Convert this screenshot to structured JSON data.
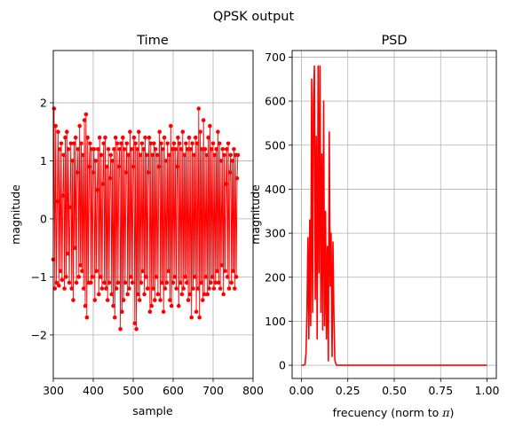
{
  "figure": {
    "title": "QPSK output"
  },
  "chart_data": [
    {
      "type": "line",
      "title": "Time",
      "xlabel": "sample",
      "ylabel": "magnitude",
      "xlim": [
        300,
        800
      ],
      "ylim": [
        -2.75,
        2.9
      ],
      "xticks": [
        300,
        400,
        500,
        600,
        700,
        800
      ],
      "yticks": [
        -2,
        -1,
        0,
        1,
        2
      ],
      "grid": true,
      "marker": "circle",
      "color": "#ff0000",
      "series": [
        {
          "note_samples": "oscillating signal, samples 300–800 (approximate envelope)",
          "x_start": 300,
          "x_step": 2,
          "values": [
            -0.7,
            1.9,
            -1.2,
            1.6,
            -1.1,
            0.3,
            1.5,
            -1.15,
            1.2,
            -0.9,
            1.3,
            -1.05,
            0.4,
            1.1,
            -1.2,
            1.4,
            -1.0,
            1.5,
            -0.6,
            1.2,
            -1.1,
            0.2,
            1.3,
            -1.2,
            1.0,
            -1.4,
            1.3,
            -0.5,
            1.4,
            -1.1,
            0.8,
            1.2,
            -1.0,
            1.6,
            -0.8,
            1.3,
            -0.9,
            1.1,
            -1.2,
            1.7,
            -1.5,
            1.8,
            -1.7,
            1.4,
            -1.1,
            0.9,
            1.3,
            -1.1,
            1.2,
            -1.0,
            0.8,
            1.2,
            -1.4,
            1.0,
            -0.9,
            0.5,
            1.2,
            -1.3,
            1.4,
            -1.0,
            1.1,
            -1.2,
            0.6,
            1.3,
            -1.1,
            1.4,
            -1.2,
            0.9,
            -1.4,
            1.2,
            -1.1,
            0.7,
            1.1,
            -1.3,
            1.0,
            -1.5,
            1.2,
            -1.7,
            1.4,
            -1.2,
            1.3,
            -1.1,
            0.9,
            1.2,
            -1.9,
            1.3,
            -1.6,
            1.4,
            -1.4,
            1.2,
            -1.1,
            0.8,
            1.3,
            -1.3,
            1.1,
            -1.2,
            1.5,
            -1.0,
            1.2,
            -1.1,
            0.9,
            1.4,
            -1.8,
            1.3,
            -1.9,
            1.2,
            -1.3,
            1.5,
            -1.4,
            1.1,
            -1.1,
            1.3,
            -0.9,
            1.2,
            -1.3,
            1.4,
            -1.0,
            1.1,
            -1.2,
            0.8,
            1.4,
            -1.6,
            1.3,
            -1.5,
            1.1,
            -1.2,
            1.3,
            -1.4,
            1.2,
            -1.0,
            1.1,
            -1.3,
            0.9,
            1.5,
            -1.4,
            1.3,
            -1.1,
            1.2,
            -1.6,
            1.4,
            -1.2,
            1.0,
            -1.1,
            1.3,
            -0.9,
            1.1,
            -1.4,
            1.6,
            -1.5,
            1.2,
            -1.1,
            1.3,
            -1.0,
            1.2,
            -1.2,
            0.9,
            1.4,
            -1.5,
            1.3,
            -1.1,
            1.2,
            -1.3,
            1.5,
            -1.2,
            1.1,
            -1.0,
            1.3,
            -1.1,
            1.2,
            -1.4,
            1.4,
            -1.3,
            1.2,
            -1.7,
            1.3,
            -1.2,
            1.1,
            -1.0,
            1.4,
            -1.6,
            1.3,
            -1.2,
            1.9,
            -1.7,
            1.5,
            -1.1,
            1.2,
            -1.4,
            1.7,
            -1.3,
            1.2,
            -1.0,
            1.1,
            -1.3,
            1.4,
            -1.2,
            1.6,
            -1.1,
            1.2,
            -1.0,
            1.3,
            -1.2,
            1.1,
            -1.1,
            1.2,
            -0.9,
            1.5,
            -1.1,
            1.3,
            -1.2,
            1.0,
            -0.8,
            1.2,
            -1.3,
            1.1,
            -0.9,
            0.6,
            1.2,
            -1.0,
            1.3,
            -1.2,
            0.8,
            1.1,
            -1.1,
            1.0,
            -0.9,
            1.2,
            -1.2,
            1.1,
            -1.0,
            0.7,
            1.1
          ]
        }
      ]
    },
    {
      "type": "line",
      "title": "PSD",
      "xlabel_prefix": "frecuency (norm to ",
      "xlabel_symbol": "π",
      "xlabel_suffix": ")",
      "ylabel": "magnitude",
      "xlim": [
        -0.05,
        1.05
      ],
      "ylim": [
        -30,
        715
      ],
      "xticks": [
        0.0,
        0.25,
        0.5,
        0.75,
        1.0
      ],
      "xtick_labels": [
        "0.00",
        "0.25",
        "0.50",
        "0.75",
        "1.00"
      ],
      "yticks": [
        0,
        100,
        200,
        300,
        400,
        500,
        600,
        700
      ],
      "grid": true,
      "color": "#ff0000",
      "series": [
        {
          "x": [
            0.0,
            0.01,
            0.02,
            0.025,
            0.03,
            0.035,
            0.04,
            0.045,
            0.05,
            0.055,
            0.06,
            0.065,
            0.07,
            0.075,
            0.08,
            0.085,
            0.09,
            0.095,
            0.1,
            0.105,
            0.11,
            0.115,
            0.12,
            0.125,
            0.13,
            0.135,
            0.14,
            0.145,
            0.15,
            0.155,
            0.16,
            0.165,
            0.17,
            0.175,
            0.18,
            0.185,
            0.19,
            0.2,
            0.3,
            0.4,
            0.5,
            0.6,
            0.7,
            0.8,
            0.9,
            1.0
          ],
          "y": [
            0,
            0,
            2,
            30,
            120,
            290,
            60,
            330,
            90,
            650,
            120,
            600,
            680,
            150,
            520,
            60,
            680,
            210,
            680,
            120,
            480,
            80,
            600,
            90,
            350,
            60,
            270,
            10,
            530,
            180,
            300,
            20,
            280,
            120,
            12,
            4,
            0,
            0,
            0,
            0,
            0,
            0,
            0,
            0,
            0,
            0
          ]
        }
      ]
    }
  ]
}
